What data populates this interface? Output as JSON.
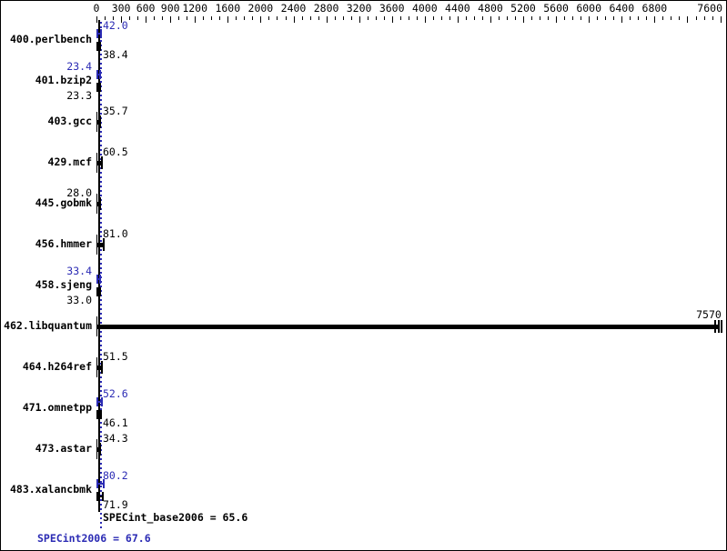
{
  "chart_data": {
    "type": "bar",
    "orientation": "horizontal",
    "title": "",
    "x_axis": {
      "min": 0,
      "max": 7600,
      "minor_tick_step": 100,
      "major_ticks": [
        0,
        300,
        600,
        900,
        1200,
        1600,
        2000,
        2400,
        2800,
        3200,
        3600,
        4000,
        4400,
        4800,
        5200,
        5600,
        6000,
        6400,
        6800,
        7200,
        7600
      ],
      "labeled_ticks": [
        0,
        300,
        600,
        900,
        1200,
        1600,
        2000,
        2400,
        2800,
        3200,
        3600,
        4000,
        4400,
        4800,
        5200,
        5600,
        6000,
        6400,
        6800,
        7600
      ]
    },
    "benchmarks": [
      {
        "name": "400.perlbench",
        "peak": 42.0,
        "base": 38.4,
        "peak_label": "42.0",
        "base_label": "38.4",
        "label_side": "right",
        "single": false
      },
      {
        "name": "401.bzip2",
        "peak": 23.4,
        "base": 23.3,
        "peak_label": "23.4",
        "base_label": "23.3",
        "label_side": "left",
        "single": false
      },
      {
        "name": "403.gcc",
        "base": 35.7,
        "base_label": "35.7",
        "label_side": "right",
        "single": true
      },
      {
        "name": "429.mcf",
        "base": 60.5,
        "base_label": "60.5",
        "label_side": "right",
        "single": true
      },
      {
        "name": "445.gobmk",
        "base": 28.0,
        "base_label": "28.0",
        "label_side": "left",
        "single": true
      },
      {
        "name": "456.hmmer",
        "base": 81.0,
        "base_label": "81.0",
        "label_side": "right",
        "single": true
      },
      {
        "name": "458.sjeng",
        "peak": 33.4,
        "base": 33.0,
        "peak_label": "33.4",
        "base_label": "33.0",
        "label_side": "left",
        "single": false
      },
      {
        "name": "462.libquantum",
        "base": 7570,
        "base_label": "7570",
        "label_side": "bar_end",
        "single": true,
        "double_end_cap": true
      },
      {
        "name": "464.h264ref",
        "base": 51.5,
        "base_label": "51.5",
        "label_side": "right",
        "single": true
      },
      {
        "name": "471.omnetpp",
        "peak": 52.6,
        "base": 46.1,
        "peak_label": "52.6",
        "base_label": "46.1",
        "label_side": "right",
        "single": false
      },
      {
        "name": "473.astar",
        "base": 34.3,
        "base_label": "34.3",
        "label_side": "right",
        "single": true
      },
      {
        "name": "483.xalancbmk",
        "peak": 80.2,
        "base": 71.9,
        "peak_label": "80.2",
        "base_label": "71.9",
        "label_side": "right",
        "single": false
      }
    ],
    "mean_lines": {
      "base_value": 65.6,
      "peak_value": 67.6,
      "peak_style": "dotted"
    },
    "summary": {
      "base_label": "SPECint_base2006 = 65.6",
      "peak_label": "SPECint2006 = 67.6",
      "base_value": 65.6,
      "peak_value": 67.6
    },
    "colors": {
      "base": "#000000",
      "peak": "#2b2bb4",
      "background": "#ffffff",
      "border": "#000000"
    },
    "legend_position": "none",
    "grid": false
  }
}
